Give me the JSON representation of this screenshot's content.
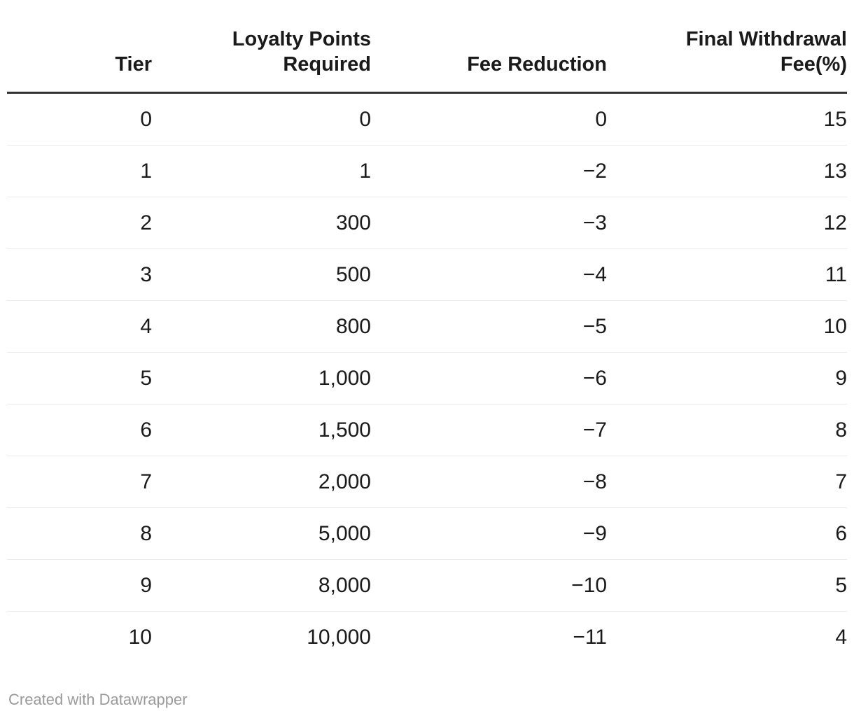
{
  "table": {
    "columns": [
      {
        "id": "tier",
        "label": "Tier",
        "lines": [
          "Tier"
        ]
      },
      {
        "id": "loyalty-points-required",
        "label": "Loyalty Points Required",
        "lines": [
          "Loyalty Points",
          "Required"
        ]
      },
      {
        "id": "fee-reduction",
        "label": "Fee Reduction",
        "lines": [
          "Fee Reduction"
        ]
      },
      {
        "id": "final-withdrawal-fee",
        "label": "Final Withdrawal Fee(%)",
        "lines": [
          "Final Withdrawal",
          "Fee(%)"
        ]
      }
    ],
    "rows": [
      [
        "0",
        "0",
        "0",
        "15"
      ],
      [
        "1",
        "1",
        "−2",
        "13"
      ],
      [
        "2",
        "300",
        "−3",
        "12"
      ],
      [
        "3",
        "500",
        "−4",
        "11"
      ],
      [
        "4",
        "800",
        "−5",
        "10"
      ],
      [
        "5",
        "1,000",
        "−6",
        "9"
      ],
      [
        "6",
        "1,500",
        "−7",
        "8"
      ],
      [
        "7",
        "2,000",
        "−8",
        "7"
      ],
      [
        "8",
        "5,000",
        "−9",
        "6"
      ],
      [
        "9",
        "8,000",
        "−10",
        "5"
      ],
      [
        "10",
        "10,000",
        "−11",
        "4"
      ]
    ]
  },
  "chart_data": {
    "type": "table",
    "title": "",
    "columns": [
      "Tier",
      "Loyalty Points Required",
      "Fee Reduction",
      "Final Withdrawal Fee(%)"
    ],
    "rows": [
      [
        0,
        0,
        0,
        15
      ],
      [
        1,
        1,
        -2,
        13
      ],
      [
        2,
        300,
        -3,
        12
      ],
      [
        3,
        500,
        -4,
        11
      ],
      [
        4,
        800,
        -5,
        10
      ],
      [
        5,
        1000,
        -6,
        9
      ],
      [
        6,
        1500,
        -7,
        8
      ],
      [
        7,
        2000,
        -8,
        7
      ],
      [
        8,
        5000,
        -9,
        6
      ],
      [
        9,
        8000,
        -10,
        5
      ],
      [
        10,
        10000,
        -11,
        4
      ]
    ],
    "layout_hints": {
      "alignment": "right",
      "header_border": true,
      "row_dividers": true
    }
  },
  "footer": {
    "attribution": "Created with Datawrapper"
  },
  "colors": {
    "background": "#ffffff",
    "text": "#1a1a1a",
    "header_text": "#1a1a1a",
    "header_border": "#333333",
    "row_divider": "#ebebeb",
    "attribution_text": "#9a9a9a"
  }
}
